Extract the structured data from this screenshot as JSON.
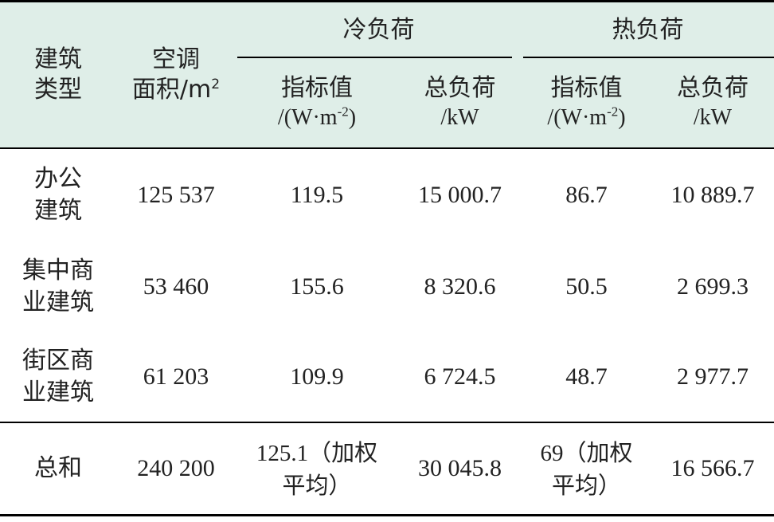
{
  "header": {
    "type_line1": "建筑",
    "type_line2": "类型",
    "area_line1": "空调",
    "area_line2": "面积/m",
    "area_sup": "2",
    "cold_group": "冷负荷",
    "heat_group": "热负荷",
    "index_label": "指标值",
    "index_unit_pre": "/(W·m",
    "index_unit_sup": "-2",
    "index_unit_post": ")",
    "total_label": "总负荷",
    "total_unit": "/kW"
  },
  "rows": [
    {
      "type_line1": "办公",
      "type_line2": "建筑",
      "area": "125 537",
      "cold_index": "119.5",
      "cold_total": "15 000.7",
      "heat_index": "86.7",
      "heat_total": "10 889.7"
    },
    {
      "type_line1": "集中商",
      "type_line2": "业建筑",
      "area": "53 460",
      "cold_index": "155.6",
      "cold_total": "8 320.6",
      "heat_index": "50.5",
      "heat_total": "2 699.3"
    },
    {
      "type_line1": "街区商",
      "type_line2": "业建筑",
      "area": "61 203",
      "cold_index": "109.9",
      "cold_total": "6 724.5",
      "heat_index": "48.7",
      "heat_total": "2 977.7"
    }
  ],
  "total": {
    "label": "总和",
    "area": "240 200",
    "cold_index_num": "125.1",
    "cold_index_note1": "（加权",
    "cold_index_note2": "平均）",
    "cold_total": "30 045.8",
    "heat_index_num": "69",
    "heat_index_note1": "（加权",
    "heat_index_note2": "平均）",
    "heat_total": "16 566.7"
  }
}
